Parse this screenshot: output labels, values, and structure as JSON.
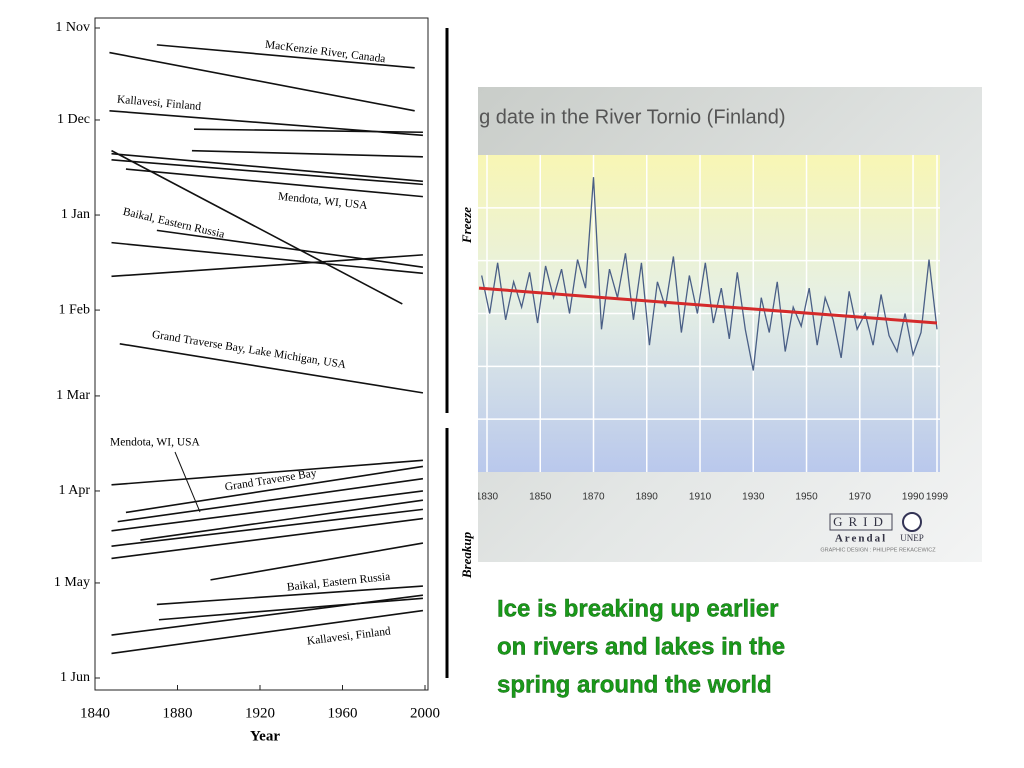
{
  "chart_data": [
    {
      "type": "line",
      "x_label": "Year",
      "xlim": [
        1840,
        2000
      ],
      "xticks": [
        1840,
        1880,
        1920,
        1960,
        2000
      ],
      "ylim": [
        0,
        212
      ],
      "y_inverted": true,
      "yticks": [
        {
          "value": 0,
          "label": "1 Nov"
        },
        {
          "value": 30,
          "label": "1 Dec"
        },
        {
          "value": 61,
          "label": "1 Jan"
        },
        {
          "value": 92,
          "label": "1 Feb"
        },
        {
          "value": 120,
          "label": "1 Mar"
        },
        {
          "value": 151,
          "label": "1 Apr"
        },
        {
          "value": 181,
          "label": "1 May"
        },
        {
          "value": 212,
          "label": "1 Jun"
        }
      ],
      "color": "#111111",
      "series": [
        {
          "x": [
            1870,
            1995
          ],
          "values": [
            5.5,
            13
          ]
        },
        {
          "x": [
            1847,
            1995
          ],
          "values": [
            8,
            27
          ]
        },
        {
          "x": [
            1847,
            1999
          ],
          "values": [
            27,
            35
          ]
        },
        {
          "x": [
            1888,
            1999
          ],
          "values": [
            33,
            34
          ]
        },
        {
          "x": [
            1887,
            1999
          ],
          "values": [
            40,
            42
          ]
        },
        {
          "x": [
            1848,
            1989
          ],
          "values": [
            40,
            90
          ]
        },
        {
          "x": [
            1848,
            1999
          ],
          "values": [
            41,
            50
          ]
        },
        {
          "x": [
            1848,
            1999
          ],
          "values": [
            43,
            51
          ]
        },
        {
          "x": [
            1855,
            1999
          ],
          "values": [
            46,
            55
          ]
        },
        {
          "x": [
            1870,
            1999
          ],
          "values": [
            66,
            78
          ]
        },
        {
          "x": [
            1848,
            1999
          ],
          "values": [
            70,
            80
          ]
        },
        {
          "x": [
            1848,
            1999
          ],
          "values": [
            81,
            74
          ]
        },
        {
          "x": [
            1852,
            1999
          ],
          "values": [
            103,
            119
          ]
        },
        {
          "x": [
            1848,
            1999
          ],
          "values": [
            149,
            141
          ]
        },
        {
          "x": [
            1855,
            1999
          ],
          "values": [
            158,
            143
          ]
        },
        {
          "x": [
            1851,
            1999
          ],
          "values": [
            161,
            147
          ]
        },
        {
          "x": [
            1848,
            1999
          ],
          "values": [
            164,
            151
          ]
        },
        {
          "x": [
            1848,
            1999
          ],
          "values": [
            169,
            157
          ]
        },
        {
          "x": [
            1848,
            1999
          ],
          "values": [
            173,
            160
          ]
        },
        {
          "x": [
            1862,
            1999
          ],
          "values": [
            167,
            154
          ]
        },
        {
          "x": [
            1896,
            1999
          ],
          "values": [
            180,
            168
          ]
        },
        {
          "x": [
            1870,
            1999
          ],
          "values": [
            188,
            182
          ]
        },
        {
          "x": [
            1848,
            1999
          ],
          "values": [
            198,
            185
          ]
        },
        {
          "x": [
            1871,
            1999
          ],
          "values": [
            193,
            186
          ]
        },
        {
          "x": [
            1848,
            1999
          ],
          "values": [
            204,
            190
          ]
        }
      ],
      "annotations": [
        "MacKenzie River, Canada",
        "Kallavesi, Finland",
        "Mendota, WI, USA",
        "Baikal, Eastern Russia",
        "Grand Traverse Bay, Lake Michigan, USA",
        "Mendota, WI, USA",
        "Grand Traverse Bay",
        "Baikal, Eastern Russia",
        "Kallavesi, Finland"
      ],
      "phases": [
        "Freeze",
        "Breakup"
      ]
    },
    {
      "type": "line",
      "title": "ng date in the River Tornio (Finland)",
      "xlim": [
        1826.6,
        2000
      ],
      "ylim": [
        0,
        100
      ],
      "xticks": [
        1830,
        1850,
        1870,
        1890,
        1910,
        1930,
        1950,
        1970,
        1990,
        1999
      ],
      "grid": true,
      "series": [
        {
          "color": "#4a5f86",
          "x": [
            1828,
            1831,
            1834,
            1837,
            1840,
            1843,
            1846,
            1849,
            1852,
            1855,
            1858,
            1861,
            1864,
            1867,
            1870,
            1873,
            1876,
            1879,
            1882,
            1885,
            1888,
            1891,
            1894,
            1897,
            1900,
            1903,
            1906,
            1909,
            1912,
            1915,
            1918,
            1921,
            1924,
            1927,
            1930,
            1933,
            1936,
            1939,
            1942,
            1945,
            1948,
            1951,
            1954,
            1957,
            1960,
            1963,
            1966,
            1969,
            1972,
            1975,
            1978,
            1981,
            1984,
            1987,
            1990,
            1993,
            1996,
            1999
          ],
          "values": [
            62,
            50,
            66,
            48,
            60,
            52,
            63,
            47,
            65,
            55,
            64,
            50,
            67,
            58,
            93,
            45,
            64,
            55,
            69,
            48,
            66,
            40,
            60,
            52,
            68,
            44,
            62,
            50,
            66,
            47,
            58,
            42,
            63,
            45,
            32,
            55,
            44,
            60,
            38,
            52,
            46,
            58,
            40,
            55,
            48,
            36,
            57,
            45,
            50,
            40,
            56,
            43,
            38,
            50,
            37,
            44,
            67,
            45
          ]
        },
        {
          "color": "#d42a2a",
          "x": [
            1827,
            1999
          ],
          "values": [
            58,
            47
          ]
        }
      ],
      "credits": [
        "GRID",
        "Arendal",
        "UNEP",
        "GRAPHIC DESIGN : PHILIPPE REKACEWICZ"
      ]
    }
  ],
  "caption": [
    "Ice is breaking up earlier",
    "on rivers and lakes in the",
    "spring around the world"
  ]
}
